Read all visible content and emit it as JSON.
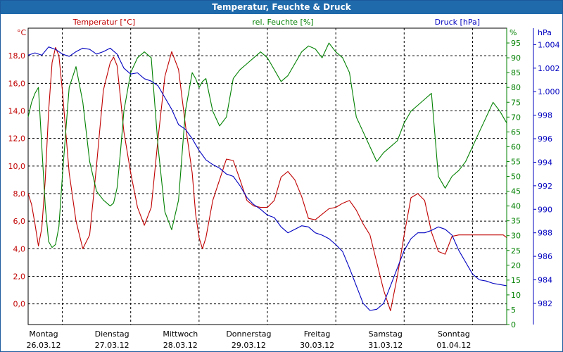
{
  "window": {
    "title": "Temperatur, Feuchte & Druck"
  },
  "colors": {
    "temperature": "#c00000",
    "humidity": "#008000",
    "pressure": "#0000c0",
    "titlebar": "#1f6aab",
    "grid": "#000000"
  },
  "chart_data": {
    "type": "line",
    "title": "Temperatur, Feuchte & Druck",
    "grid": true,
    "x_ticks": [
      {
        "day": "Montag",
        "date": "26.03.12"
      },
      {
        "day": "Dienstag",
        "date": "27.03.12"
      },
      {
        "day": "Mittwoch",
        "date": "28.03.12"
      },
      {
        "day": "Donnerstag",
        "date": "29.03.12"
      },
      {
        "day": "Freitag",
        "date": "30.03.12"
      },
      {
        "day": "Samstag",
        "date": "31.03.12"
      },
      {
        "day": "Sonntag",
        "date": "01.04.12"
      }
    ],
    "x_range_days": [
      0,
      7
    ],
    "axes": {
      "temperature": {
        "label": "Temperatur [°C]",
        "unit": "°C",
        "ylim": [
          -1.5,
          20
        ],
        "ticks": [
          "0,0",
          "2,0",
          "4,0",
          "6,0",
          "8,0",
          "10,0",
          "12,0",
          "14,0",
          "16,0",
          "18,0"
        ]
      },
      "humidity": {
        "label": "rel. Feuchte [%]",
        "unit": "%",
        "ylim": [
          0,
          100
        ],
        "ticks": [
          "0",
          "5",
          "10",
          "15",
          "20",
          "25",
          "30",
          "35",
          "40",
          "45",
          "50",
          "55",
          "60",
          "65",
          "70",
          "75",
          "80",
          "85",
          "90",
          "95"
        ]
      },
      "pressure": {
        "label": "Druck [hPa]",
        "unit": "hPa",
        "ylim": [
          980.2,
          1005.4
        ],
        "ticks": [
          "982",
          "984",
          "986",
          "988",
          "990",
          "992",
          "994",
          "996",
          "998",
          "1.000",
          "1.002",
          "1.004"
        ]
      }
    },
    "series": [
      {
        "name": "Temperatur [°C]",
        "axis": "temperature",
        "x": [
          0,
          0.05,
          0.1,
          0.15,
          0.2,
          0.25,
          0.3,
          0.35,
          0.4,
          0.45,
          0.5,
          0.55,
          0.6,
          0.7,
          0.8,
          0.9,
          1.0,
          1.1,
          1.2,
          1.25,
          1.3,
          1.35,
          1.4,
          1.5,
          1.6,
          1.7,
          1.8,
          1.9,
          2.0,
          2.1,
          2.2,
          2.3,
          2.4,
          2.45,
          2.5,
          2.55,
          2.6,
          2.7,
          2.8,
          2.9,
          3.0,
          3.1,
          3.2,
          3.3,
          3.4,
          3.5,
          3.6,
          3.7,
          3.8,
          3.9,
          4.0,
          4.1,
          4.2,
          4.3,
          4.4,
          4.5,
          4.6,
          4.7,
          4.8,
          4.9,
          5.0,
          5.1,
          5.2,
          5.3,
          5.4,
          5.5,
          5.6,
          5.7,
          5.8,
          5.9,
          6.0,
          6.1,
          6.2,
          6.3,
          6.4,
          6.5,
          6.6,
          6.7,
          6.8,
          6.9,
          6.95,
          7.0
        ],
        "values": [
          8.0,
          7.2,
          5.8,
          4.2,
          5.5,
          9.0,
          14.0,
          17.5,
          18.6,
          18.0,
          15.5,
          12.5,
          9.5,
          6.0,
          4.0,
          5.0,
          10.0,
          15.5,
          17.5,
          17.9,
          17.3,
          15.0,
          12.5,
          9.5,
          7.0,
          5.7,
          7.0,
          12.0,
          16.5,
          18.3,
          17.0,
          13.0,
          9.5,
          6.5,
          4.8,
          4.0,
          4.8,
          7.5,
          9.0,
          10.5,
          10.4,
          9.0,
          7.5,
          7.1,
          7.0,
          7.0,
          7.5,
          9.2,
          9.6,
          9.0,
          7.8,
          6.2,
          6.1,
          6.5,
          6.9,
          7.0,
          7.3,
          7.5,
          6.8,
          5.8,
          5.0,
          3.0,
          1.0,
          -0.5,
          2.0,
          5.0,
          7.7,
          8.0,
          7.5,
          5.2,
          3.8,
          3.6,
          4.9,
          5.0,
          5.0,
          5.0,
          5.0,
          5.0,
          5.0,
          5.0,
          5.0,
          4.8
        ]
      },
      {
        "name": "rel. Feuchte [%]",
        "axis": "humidity",
        "x": [
          0,
          0.05,
          0.1,
          0.15,
          0.2,
          0.25,
          0.3,
          0.35,
          0.4,
          0.45,
          0.5,
          0.55,
          0.6,
          0.7,
          0.8,
          0.9,
          1.0,
          1.1,
          1.2,
          1.25,
          1.3,
          1.35,
          1.4,
          1.5,
          1.6,
          1.7,
          1.8,
          1.9,
          2.0,
          2.1,
          2.2,
          2.3,
          2.4,
          2.45,
          2.5,
          2.55,
          2.6,
          2.7,
          2.8,
          2.9,
          3.0,
          3.1,
          3.2,
          3.3,
          3.4,
          3.5,
          3.6,
          3.7,
          3.8,
          3.9,
          4.0,
          4.1,
          4.2,
          4.3,
          4.4,
          4.5,
          4.6,
          4.7,
          4.8,
          4.9,
          5.0,
          5.1,
          5.2,
          5.3,
          5.4,
          5.5,
          5.6,
          5.7,
          5.8,
          5.9,
          6.0,
          6.1,
          6.2,
          6.3,
          6.4,
          6.5,
          6.6,
          6.7,
          6.8,
          6.9,
          6.95,
          7.0
        ],
        "values": [
          70,
          75,
          78,
          80,
          60,
          40,
          28,
          26,
          27,
          33,
          50,
          65,
          80,
          87,
          75,
          55,
          45,
          42,
          40,
          41,
          46,
          58,
          72,
          85,
          90,
          92,
          90,
          60,
          38,
          32,
          42,
          72,
          85,
          83,
          80,
          82,
          83,
          72,
          67,
          70,
          83,
          86,
          88,
          90,
          92,
          90,
          86,
          82,
          84,
          88,
          92,
          94,
          93,
          90,
          95,
          92,
          90,
          85,
          70,
          65,
          60,
          55,
          58,
          60,
          62,
          68,
          72,
          74,
          76,
          78,
          50,
          46,
          50,
          52,
          55,
          60,
          65,
          70,
          75,
          72,
          70,
          68
        ]
      },
      {
        "name": "Druck [hPa]",
        "axis": "pressure",
        "x": [
          0,
          0.1,
          0.2,
          0.3,
          0.4,
          0.5,
          0.6,
          0.7,
          0.8,
          0.9,
          1.0,
          1.1,
          1.2,
          1.3,
          1.4,
          1.5,
          1.6,
          1.7,
          1.8,
          1.9,
          2.0,
          2.1,
          2.2,
          2.3,
          2.4,
          2.5,
          2.6,
          2.7,
          2.8,
          2.9,
          3.0,
          3.1,
          3.2,
          3.3,
          3.4,
          3.5,
          3.6,
          3.7,
          3.8,
          3.9,
          4.0,
          4.1,
          4.2,
          4.3,
          4.4,
          4.5,
          4.6,
          4.7,
          4.8,
          4.9,
          5.0,
          5.1,
          5.2,
          5.3,
          5.4,
          5.5,
          5.6,
          5.7,
          5.8,
          5.9,
          6.0,
          6.1,
          6.2,
          6.3,
          6.4,
          6.5,
          6.6,
          6.7,
          6.8,
          6.9,
          7.0
        ],
        "values": [
          1003.1,
          1003.3,
          1003.1,
          1003.8,
          1003.6,
          1003.2,
          1003.0,
          1003.4,
          1003.7,
          1003.6,
          1003.2,
          1003.4,
          1003.7,
          1003.2,
          1002.0,
          1001.5,
          1001.6,
          1001.1,
          1000.9,
          1000.5,
          999.5,
          998.5,
          997.2,
          996.8,
          996.0,
          995.0,
          994.2,
          993.8,
          993.5,
          993.0,
          992.8,
          992.0,
          991.0,
          990.4,
          990.0,
          989.5,
          989.3,
          988.5,
          988.0,
          988.3,
          988.6,
          988.5,
          988.0,
          987.8,
          987.5,
          987.0,
          986.4,
          985.0,
          983.5,
          982.0,
          981.4,
          981.5,
          982.0,
          983.5,
          985.0,
          986.5,
          987.5,
          988.0,
          988.0,
          988.2,
          988.5,
          988.3,
          987.8,
          986.5,
          985.5,
          984.5,
          984.0,
          983.9,
          983.7,
          983.6,
          983.5
        ]
      }
    ]
  }
}
